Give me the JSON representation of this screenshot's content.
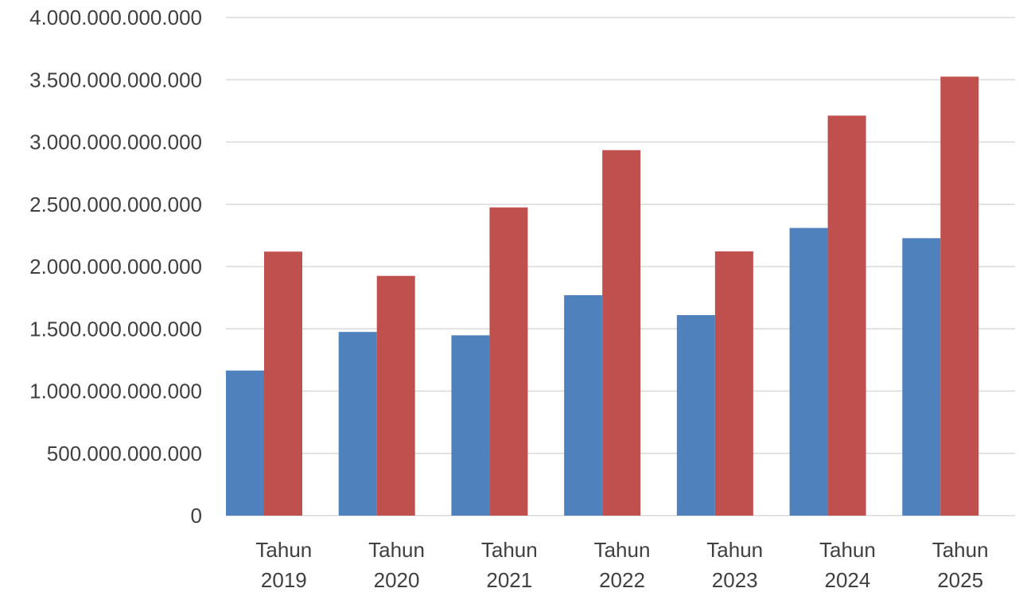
{
  "chart_data": {
    "type": "bar",
    "categories": [
      [
        "Tahun",
        "2019"
      ],
      [
        "Tahun",
        "2020"
      ],
      [
        "Tahun",
        "2021"
      ],
      [
        "Tahun",
        "2022"
      ],
      [
        "Tahun",
        "2023"
      ],
      [
        "Tahun",
        "2024"
      ],
      [
        "Tahun",
        "2025"
      ]
    ],
    "series": [
      {
        "color": "#4f81bd",
        "values": [
          1165000000000,
          1475000000000,
          1448000000000,
          1770000000000,
          1610000000000,
          2310000000000,
          2228000000000
        ]
      },
      {
        "color": "#c0504d",
        "values": [
          2120000000000,
          1925000000000,
          2475000000000,
          2935000000000,
          2122000000000,
          3212000000000,
          3525000000000
        ]
      }
    ],
    "ylim": [
      0,
      4000000000000
    ],
    "yticks": [
      {
        "value": 0,
        "label": "0"
      },
      {
        "value": 500000000000,
        "label": "500.000.000.000"
      },
      {
        "value": 1000000000000,
        "label": "1.000.000.000.000"
      },
      {
        "value": 1500000000000,
        "label": "1.500.000.000.000"
      },
      {
        "value": 2000000000000,
        "label": "2.000.000.000.000"
      },
      {
        "value": 2500000000000,
        "label": "2.500.000.000.000"
      },
      {
        "value": 3000000000000,
        "label": "3.000.000.000.000"
      },
      {
        "value": 3500000000000,
        "label": "3.500.000.000.000"
      },
      {
        "value": 4000000000000,
        "label": "4.000.000.000.000"
      }
    ],
    "grid": true,
    "legend": "none",
    "title": "",
    "xlabel": "",
    "ylabel": ""
  }
}
